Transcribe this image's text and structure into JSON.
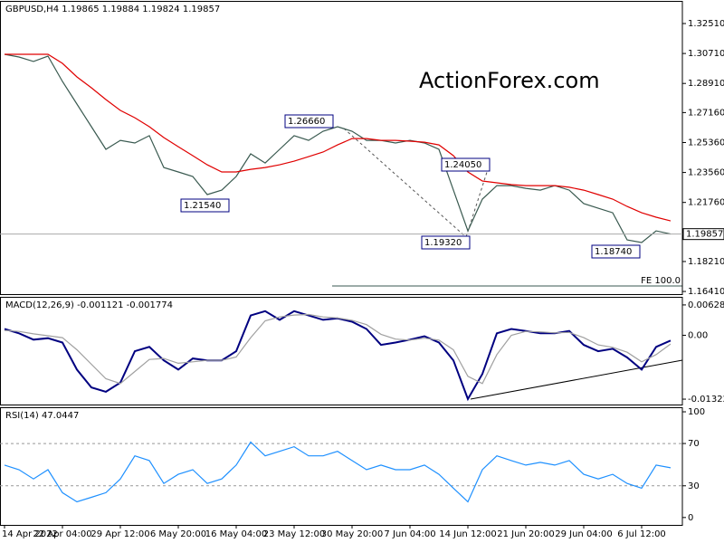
{
  "chart_data": [
    {
      "type": "line",
      "title": "GBPUSD,H4  1.19865 1.19884 1.19824 1.19857",
      "watermark": "ActionForex.com",
      "categories": [
        "14 Apr 2022",
        null,
        null,
        null,
        "22 Apr 04:00",
        null,
        null,
        null,
        "29 Apr 12:00",
        null,
        null,
        null,
        "6 May 20:00",
        null,
        null,
        null,
        "16 May 04:00",
        null,
        null,
        null,
        "23 May 12:00",
        null,
        null,
        null,
        "30 May 20:00",
        null,
        null,
        null,
        "7 Jun 04:00",
        null,
        null,
        null,
        "14 Jun 12:00",
        null,
        null,
        null,
        "21 Jun 20:00",
        null,
        null,
        null,
        "29 Jun 04:00",
        null,
        null,
        null,
        "6 Jul 12:00",
        null,
        null
      ],
      "series": [
        {
          "color": "#3a5a50",
          "values": [
            1.3066,
            1.305,
            1.3023,
            1.3055,
            1.2903,
            1.2767,
            1.2631,
            1.2495,
            1.2549,
            1.2533,
            1.2577,
            1.2386,
            1.2359,
            1.2332,
            1.2223,
            1.225,
            1.2332,
            1.2468,
            1.2413,
            1.2495,
            1.2577,
            1.2549,
            1.2604,
            1.2631,
            1.2604,
            1.2549,
            1.2549,
            1.2533,
            1.2549,
            1.2533,
            1.2495,
            1.225,
            1.2005,
            1.2196,
            1.2277,
            1.2277,
            1.2261,
            1.225,
            1.2277,
            1.225,
            1.2169,
            1.2141,
            1.2114,
            1.1951,
            1.1935,
            1.2005,
            1.1986
          ]
        },
        {
          "color": "#e00000",
          "values": [
            1.3066,
            1.3066,
            1.3066,
            1.3066,
            1.3012,
            1.293,
            1.2865,
            1.2794,
            1.2729,
            1.2685,
            1.2631,
            1.2566,
            1.2511,
            1.2457,
            1.2402,
            1.2359,
            1.2359,
            1.2375,
            1.2386,
            1.2402,
            1.2424,
            1.2451,
            1.2479,
            1.2522,
            1.256,
            1.256,
            1.2549,
            1.2549,
            1.2544,
            1.2538,
            1.2522,
            1.2457,
            1.2359,
            1.2305,
            1.2294,
            1.2283,
            1.2277,
            1.2277,
            1.2277,
            1.2267,
            1.225,
            1.2223,
            1.2196,
            1.2152,
            1.2114,
            1.2087,
            1.2065
          ]
        }
      ],
      "ylim": [
        1.1625,
        1.3387
      ],
      "yticks": [
        {
          "value": 1.3251,
          "label": "1.32510"
        },
        {
          "value": 1.3071,
          "label": "1.30710"
        },
        {
          "value": 1.2891,
          "label": "1.28910"
        },
        {
          "value": 1.2716,
          "label": "1.27160"
        },
        {
          "value": 1.2536,
          "label": "1.25360"
        },
        {
          "value": 1.2356,
          "label": "1.23560"
        },
        {
          "value": 1.2176,
          "label": "1.21760"
        },
        {
          "value": 1.1821,
          "label": "1.18210"
        },
        {
          "value": 1.1641,
          "label": "1.16410"
        }
      ],
      "current_price": {
        "value": 1.19857,
        "label": "1.19857"
      },
      "annotations": [
        "1.21540",
        "1.26660",
        "1.24050",
        "1.19320",
        "1.18740"
      ],
      "fe_label": "FE 100.0"
    },
    {
      "type": "line",
      "title": "MACD(12,26,9) -0.001121 -0.001774",
      "series": [
        {
          "color": "#000080",
          "values": [
            0.0013,
            0.0004,
            -0.0009,
            -0.0006,
            -0.0015,
            -0.0071,
            -0.0108,
            -0.0117,
            -0.0098,
            -0.0033,
            -0.0024,
            -0.0052,
            -0.0071,
            -0.0048,
            -0.0052,
            -0.0052,
            -0.0033,
            0.0041,
            0.005,
            0.0032,
            0.005,
            0.0041,
            0.0032,
            0.0035,
            0.0028,
            0.0013,
            -0.002,
            -0.0015,
            -0.0009,
            -0.0002,
            -0.0015,
            -0.0052,
            -0.0132,
            -0.008,
            0.0004,
            0.0013,
            0.0009,
            0.0004,
            0.0004,
            0.0009,
            -0.002,
            -0.0033,
            -0.0028,
            -0.0046,
            -0.0071,
            -0.0024,
            -0.0011
          ]
        },
        {
          "color": "#a0a0a0",
          "values": [
            0.001,
            0.0008,
            0.0003,
            -0.0001,
            -0.0005,
            -0.003,
            -0.006,
            -0.009,
            -0.01,
            -0.0075,
            -0.005,
            -0.0048,
            -0.0058,
            -0.0055,
            -0.0052,
            -0.0052,
            -0.0045,
            -0.0005,
            0.003,
            0.0038,
            0.0042,
            0.0043,
            0.0038,
            0.0036,
            0.0031,
            0.0022,
            0.0002,
            -0.0008,
            -0.001,
            -0.0006,
            -0.001,
            -0.003,
            -0.0085,
            -0.01,
            -0.004,
            0.0,
            0.0008,
            0.0007,
            0.0005,
            0.0006,
            -0.0005,
            -0.002,
            -0.0025,
            -0.0035,
            -0.0055,
            -0.004,
            -0.0018
          ]
        }
      ],
      "ylim": [
        -0.014338,
        0.007957
      ],
      "yticks": [
        0.006285,
        {
          "value": 0,
          "label": "0.00"
        },
        -0.013223
      ]
    },
    {
      "type": "line",
      "title": "RSI(14) 47.0447",
      "series": [
        {
          "color": "#1e90ff",
          "values": [
            49.6,
            45.2,
            36.5,
            45.2,
            23.5,
            14.8,
            19.1,
            23.5,
            36.5,
            58.3,
            53.9,
            32.2,
            40.9,
            45.2,
            32.2,
            36.5,
            49.6,
            71.3,
            58.3,
            62.6,
            67.0,
            58.3,
            58.3,
            62.6,
            53.9,
            45.2,
            49.6,
            45.2,
            45.2,
            49.6,
            40.9,
            27.8,
            14.8,
            45.2,
            58.3,
            53.9,
            49.6,
            52.2,
            49.6,
            53.9,
            40.9,
            36.5,
            40.9,
            32.2,
            27.8,
            49.6,
            47.0
          ]
        }
      ],
      "ylim": [
        -7,
        104.3
      ],
      "yticks": [
        100,
        70,
        30,
        0
      ],
      "levels": [
        70,
        30
      ]
    }
  ]
}
